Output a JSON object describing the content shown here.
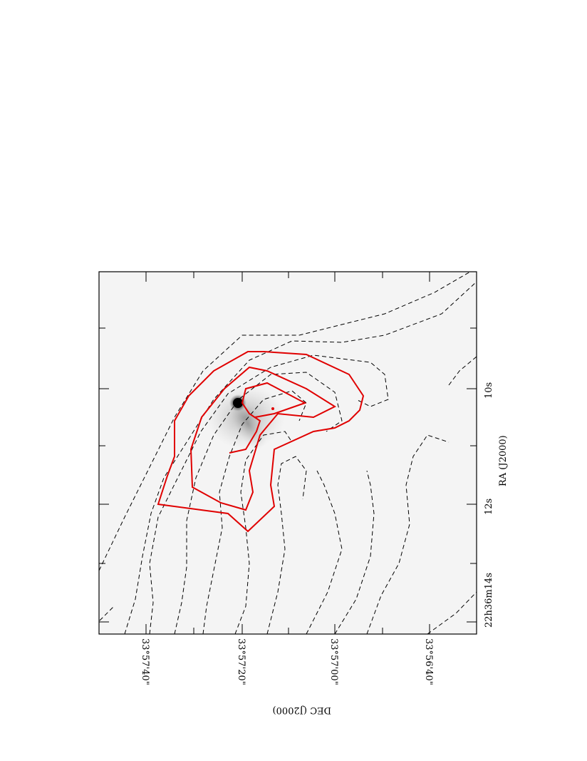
{
  "chart_data": {
    "type": "contour",
    "xlabel": "RA (J2000)",
    "ylabel": "DEC (J2000)",
    "xticklabels": [
      "22h36m14s",
      "12s",
      "10s"
    ],
    "yticklabels": [
      "33°57'40\"",
      "33°57'20\"",
      "33°57'00\"",
      "33°56'40\""
    ],
    "background": "greyscale optical image with a bright compact source",
    "grid": false,
    "orientation": "rotated 90 degrees counter-clockwise on the page",
    "series": [
      {
        "style": "dashed",
        "color": "#000000",
        "levels": 7
      },
      {
        "style": "solid",
        "color": "#e00000",
        "levels": 3
      }
    ]
  }
}
